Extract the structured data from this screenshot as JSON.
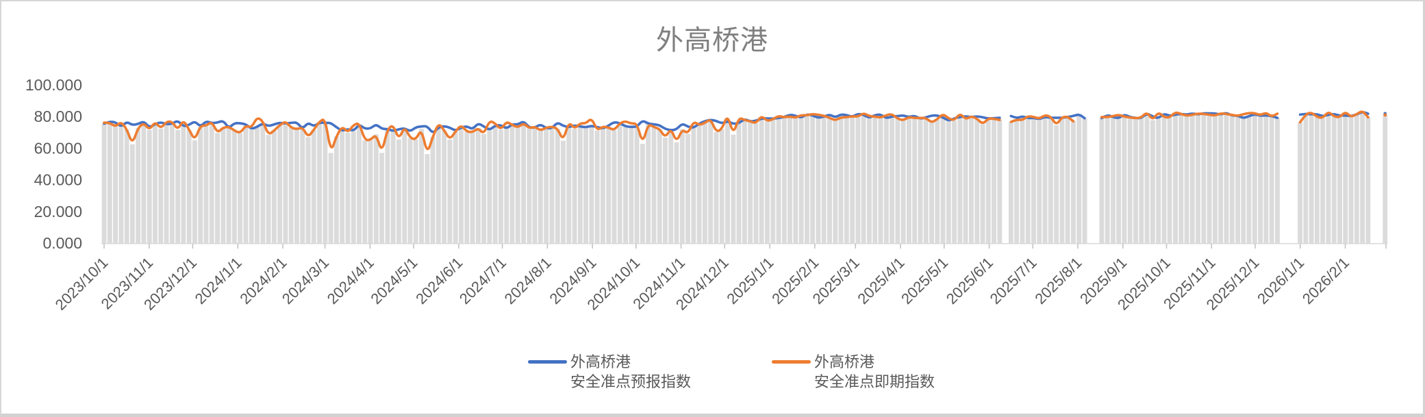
{
  "window": {
    "background": "#ffffff",
    "frame_border_color": "#d6d6d6"
  },
  "chart_data": {
    "type": "line",
    "title": "外高桥港",
    "title_color": "#7f7f7f",
    "legend_position": "bottom",
    "gridlines": false,
    "column_fill": "#dbdbdb",
    "plot_note": "gray background columns rise to the line values; one column per data point (~every 4 days)",
    "point_interval_days": 3.9,
    "y_axis": {
      "min": 0,
      "max": 100,
      "tick_step": 20,
      "tick_labels": [
        "0.000",
        "20.000",
        "40.000",
        "60.000",
        "80.000",
        "100.000"
      ],
      "label_color": "#595959"
    },
    "x_axis": {
      "range_start": "2023/10/1",
      "range_end": "2026/3/1",
      "label_color": "#595959",
      "axis_color": "#d9d9d9",
      "tick_color": "#bfbfbf",
      "tick_labels": [
        "2023/10/1",
        "2023/11/1",
        "2023/12/1",
        "2024/1/1",
        "2024/2/1",
        "2024/3/1",
        "2024/4/1",
        "2024/5/1",
        "2024/6/1",
        "2024/7/1",
        "2024/8/1",
        "2024/9/1",
        "2024/10/1",
        "2024/11/1",
        "2024/12/1",
        "2025/1/1",
        "2025/2/1",
        "2025/3/1",
        "2025/4/1",
        "2025/5/1",
        "2025/6/1",
        "2025/7/1",
        "2025/8/1",
        "2025/9/1",
        "2025/10/1",
        "2025/11/1",
        "2025/12/1",
        "2026/1/1",
        "2026/2/1"
      ]
    },
    "months": [
      "2023/10",
      "2023/11",
      "2023/12",
      "2024/1",
      "2024/2",
      "2024/3",
      "2024/4",
      "2024/5",
      "2024/6",
      "2024/7",
      "2024/8",
      "2024/9",
      "2024/10",
      "2024/11",
      "2024/12",
      "2025/1",
      "2025/2",
      "2025/3",
      "2025/4",
      "2025/5",
      "2025/6",
      "2025/7",
      "2025/8",
      "2025/9",
      "2025/10",
      "2025/11",
      "2025/12",
      "2026/1",
      "2026/2"
    ],
    "series": [
      {
        "key": "forecast",
        "name": "外高桥港安全准点预报指数",
        "name_lines": [
          "外高桥港",
          "安全准点预报指数"
        ],
        "color": "#4472C4",
        "monthly_mean": [
          75.5,
          75.5,
          75.5,
          75,
          75,
          74.5,
          72.5,
          71.5,
          73,
          74,
          74.5,
          75,
          75,
          73.5,
          76.5,
          79.5,
          80.5,
          80.5,
          80,
          80,
          79.5,
          79.5,
          80,
          80.5,
          81,
          81.5,
          81,
          81,
          81.5
        ],
        "volatility": [
          2.5,
          2.5,
          2.5,
          2.5,
          2.5,
          2.5,
          2.5,
          2.5,
          2.5,
          2.5,
          2.5,
          2.5,
          2.5,
          2.8,
          2.0,
          1.3,
          1.2,
          1.2,
          1.2,
          1.2,
          1.2,
          1.2,
          1.2,
          1.2,
          1.2,
          1.2,
          1.2,
          1.2,
          1.2
        ]
      },
      {
        "key": "spot",
        "name": "外高桥港安全准点即期指数",
        "name_lines": [
          "外高桥港",
          "安全准点即期指数"
        ],
        "color": "#ED7D31",
        "monthly_mean": [
          75,
          75,
          75,
          74.5,
          74,
          73.5,
          70.5,
          69.5,
          72.5,
          73.5,
          74,
          74.5,
          74.5,
          73,
          76,
          79.5,
          80.5,
          80.5,
          80,
          80,
          79.5,
          79.5,
          80,
          80.5,
          81,
          81.5,
          81,
          81,
          81.5
        ],
        "volatility": [
          4.5,
          4.5,
          4.5,
          4.5,
          4.8,
          4.5,
          5.5,
          5.5,
          4.5,
          4.0,
          4.2,
          4.2,
          4.2,
          4.0,
          4.5,
          2.0,
          1.8,
          1.8,
          1.8,
          1.8,
          1.8,
          1.8,
          1.8,
          1.8,
          1.8,
          1.8,
          1.8,
          1.8,
          1.8
        ]
      }
    ],
    "data_gaps": [
      {
        "start": "2025/6/9",
        "end": "2025/6/12",
        "series": "both"
      },
      {
        "start": "2025/8/1",
        "end": "2025/8/6",
        "series": "spot"
      },
      {
        "start": "2025/8/7",
        "end": "2025/8/13",
        "series": "both"
      },
      {
        "start": "2025/12/20",
        "end": "2025/12/29",
        "series": "both"
      },
      {
        "start": "2026/2/18",
        "end": "2026/2/26",
        "series": "both"
      }
    ]
  }
}
